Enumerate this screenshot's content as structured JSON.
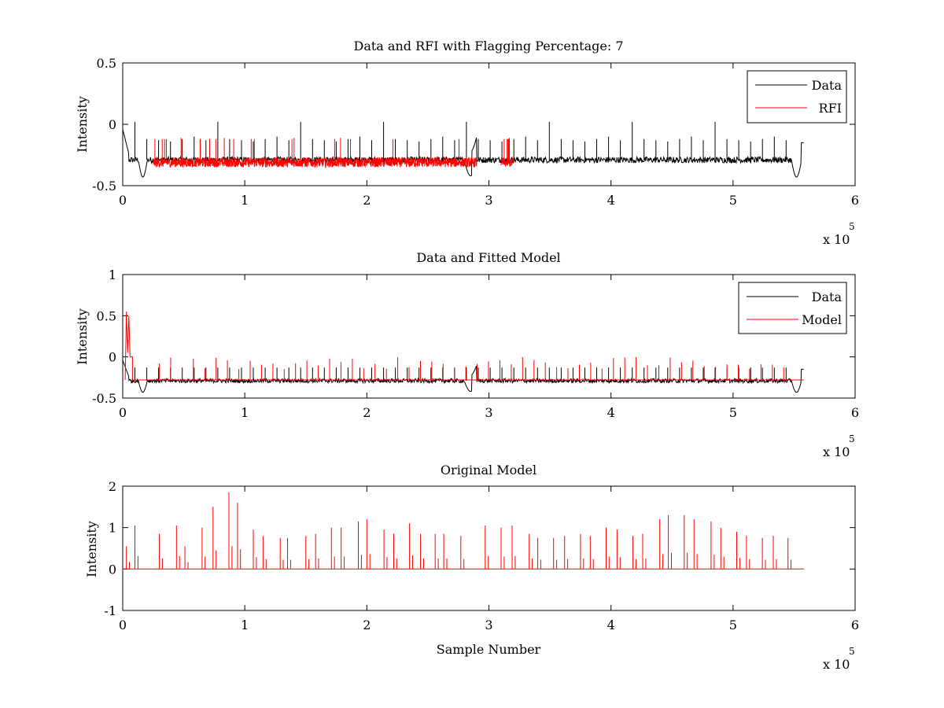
{
  "chart_data": [
    {
      "type": "line",
      "title": "Data and RFI with Flagging Percentage: 7",
      "xlabel": "",
      "ylabel": "Intensity",
      "xlim": [
        0,
        6
      ],
      "ylim": [
        -0.5,
        0.5
      ],
      "xticks": [
        0,
        1,
        2,
        3,
        4,
        5,
        6
      ],
      "yticks": [
        -0.5,
        0,
        0.5
      ],
      "ytick_labels": [
        "-0.5",
        "0",
        "0.5"
      ],
      "x_multiplier": "x 10",
      "x_exponent": "5",
      "grid": false,
      "legend_position": "top-right",
      "series": [
        {
          "name": "Data",
          "color": "#000000",
          "baseline": -0.29,
          "x_end": 5.58,
          "spike_peaks": [
            0.02,
            -0.12,
            -0.13,
            -0.14,
            -0.12,
            -0.1,
            -0.13
          ]
        },
        {
          "name": "RFI",
          "color": "#ff0000",
          "baseline": -0.31,
          "x_ranges": [
            [
              0.25,
              0.55
            ],
            [
              0.55,
              0.85
            ],
            [
              0.85,
              1.5
            ],
            [
              1.5,
              2.9
            ],
            [
              3.1,
              3.2
            ]
          ],
          "spike_peaks": [
            -0.12,
            -0.12,
            -0.11
          ]
        }
      ]
    },
    {
      "type": "line",
      "title": "Data and Fitted Model",
      "xlabel": "",
      "ylabel": "Intensity",
      "xlim": [
        0,
        6
      ],
      "ylim": [
        -0.5,
        1
      ],
      "xticks": [
        0,
        1,
        2,
        3,
        4,
        5,
        6
      ],
      "yticks": [
        -0.5,
        0,
        0.5,
        1
      ],
      "ytick_labels": [
        "-0.5",
        "0",
        "0.5",
        "1"
      ],
      "x_multiplier": "x 10",
      "x_exponent": "5",
      "grid": false,
      "legend_position": "top-right",
      "series": [
        {
          "name": "Data",
          "color": "#000000",
          "baseline": -0.29,
          "x_end": 5.58
        },
        {
          "name": "Model",
          "color": "#ff0000",
          "baseline": -0.28,
          "x_end": 5.58,
          "peak": 0.55,
          "peak_x": 0.04
        }
      ]
    },
    {
      "type": "line",
      "title": "Original Model",
      "xlabel": "Sample Number",
      "ylabel": "Intensity",
      "xlim": [
        0,
        6
      ],
      "ylim": [
        -1,
        2
      ],
      "xticks": [
        0,
        1,
        2,
        3,
        4,
        5,
        6
      ],
      "yticks": [
        -1,
        0,
        1,
        2
      ],
      "ytick_labels": [
        "-1",
        "0",
        "1",
        "2"
      ],
      "x_multiplier": "x 10",
      "x_exponent": "5",
      "grid": false,
      "legend_position": "none",
      "series": [
        {
          "name": "",
          "color": "#ff0000",
          "baseline": 0,
          "x_end": 5.58,
          "spikes": [
            [
              0.03,
              0.55
            ],
            [
              0.1,
              1.05
            ],
            [
              0.3,
              0.85
            ],
            [
              0.44,
              1.05
            ],
            [
              0.51,
              0.55
            ],
            [
              0.65,
              1.0
            ],
            [
              0.74,
              1.5
            ],
            [
              0.87,
              1.85
            ],
            [
              0.94,
              1.6
            ],
            [
              1.07,
              0.95
            ],
            [
              1.15,
              0.8
            ],
            [
              1.29,
              0.75
            ],
            [
              1.35,
              0.75
            ],
            [
              1.5,
              0.8
            ],
            [
              1.58,
              0.85
            ],
            [
              1.71,
              1.0
            ],
            [
              1.79,
              1.0
            ],
            [
              1.93,
              1.15
            ],
            [
              2.0,
              1.2
            ],
            [
              2.14,
              0.95
            ],
            [
              2.22,
              0.85
            ],
            [
              2.35,
              1.1
            ],
            [
              2.44,
              0.85
            ],
            [
              2.56,
              0.85
            ],
            [
              2.63,
              0.85
            ],
            [
              2.77,
              0.8
            ],
            [
              2.97,
              1.05
            ],
            [
              3.1,
              1.0
            ],
            [
              3.19,
              1.05
            ],
            [
              3.33,
              0.85
            ],
            [
              3.4,
              0.75
            ],
            [
              3.53,
              0.75
            ],
            [
              3.62,
              0.8
            ],
            [
              3.75,
              0.85
            ],
            [
              3.83,
              0.8
            ],
            [
              3.96,
              1.0
            ],
            [
              4.05,
              0.95
            ],
            [
              4.18,
              0.8
            ],
            [
              4.26,
              0.85
            ],
            [
              4.4,
              1.2
            ],
            [
              4.47,
              1.3
            ],
            [
              4.6,
              1.3
            ],
            [
              4.68,
              1.2
            ],
            [
              4.82,
              1.15
            ],
            [
              4.9,
              1.0
            ],
            [
              5.03,
              0.9
            ],
            [
              5.11,
              0.8
            ],
            [
              5.24,
              0.75
            ],
            [
              5.33,
              0.8
            ],
            [
              5.45,
              0.75
            ]
          ]
        }
      ]
    }
  ]
}
